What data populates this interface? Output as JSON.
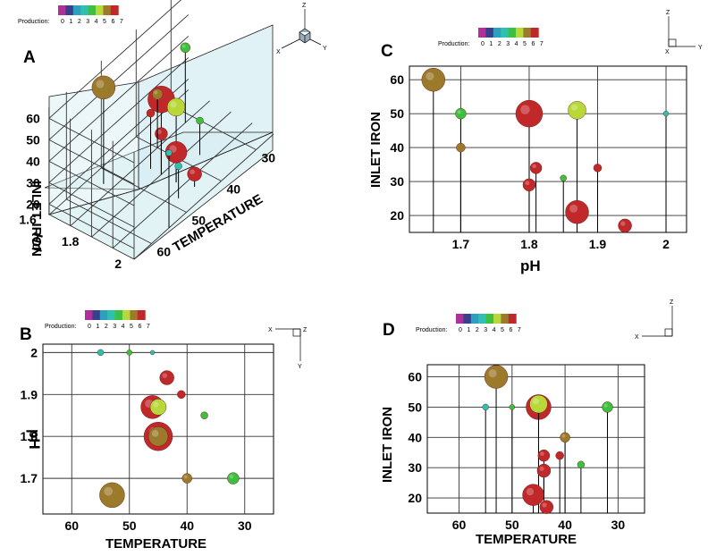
{
  "legend": {
    "title": "Production:",
    "levels": [
      "0",
      "1",
      "2",
      "3",
      "4",
      "5",
      "6",
      "7"
    ],
    "colors": [
      "#b0309a",
      "#3a3f8c",
      "#2f9fbf",
      "#30c0b0",
      "#3fbf3f",
      "#b8d83a",
      "#9b7a2c",
      "#c0282a"
    ]
  },
  "axes_triad": {
    "z": "Z",
    "x": "X",
    "y": "Y"
  },
  "chart_data": [
    {
      "panel": "A",
      "type": "scatter3d",
      "title": "",
      "xlabel": "TEMPERATURE",
      "ylabel": "pH",
      "zlabel": "INLET IRON",
      "xticks": [
        "30",
        "40",
        "50",
        "60"
      ],
      "yticks": [
        "1.6",
        "1.8",
        "2"
      ],
      "zticks": [
        "20",
        "30",
        "40",
        "50",
        "60"
      ],
      "xlim": [
        25,
        65
      ],
      "ylim": [
        1.6,
        2.0
      ],
      "zlim": [
        15,
        65
      ],
      "points": [
        {
          "temperature": 53,
          "ph": 1.66,
          "iron": 60,
          "size": 26,
          "level": 6
        },
        {
          "temperature": 45,
          "ph": 1.8,
          "iron": 50,
          "size": 30,
          "level": 7
        },
        {
          "temperature": 45,
          "ph": 1.87,
          "iron": 50,
          "size": 20,
          "level": 5
        },
        {
          "temperature": 45,
          "ph": 1.8,
          "iron": 34,
          "size": 14,
          "level": 7
        },
        {
          "temperature": 45,
          "ph": 1.87,
          "iron": 29,
          "size": 24,
          "level": 7
        },
        {
          "temperature": 44,
          "ph": 1.94,
          "iron": 21,
          "size": 16,
          "level": 7
        },
        {
          "temperature": 40,
          "ph": 1.7,
          "iron": 40,
          "size": 12,
          "level": 6
        },
        {
          "temperature": 32,
          "ph": 1.7,
          "iron": 50,
          "size": 11,
          "level": 4
        },
        {
          "temperature": 37,
          "ph": 1.85,
          "iron": 31,
          "size": 8,
          "level": 4
        },
        {
          "temperature": 48,
          "ph": 1.93,
          "iron": 30,
          "size": 8,
          "level": 3
        },
        {
          "temperature": 55,
          "ph": 2.0,
          "iron": 50,
          "size": 7,
          "level": 3
        },
        {
          "temperature": 45,
          "ph": 1.75,
          "iron": 41,
          "size": 9,
          "level": 7
        }
      ]
    },
    {
      "panel": "B",
      "type": "scatter",
      "title": "",
      "xlabel": "TEMPERATURE",
      "ylabel": "pH",
      "xticks": [
        60,
        50,
        40,
        30
      ],
      "yticks": [
        1.7,
        1.8,
        1.9,
        2
      ],
      "xlim": [
        65,
        25
      ],
      "ylim": [
        1.615,
        2.02
      ],
      "points": [
        {
          "temperature": 53,
          "ph": 1.66,
          "size": 28,
          "level": 6
        },
        {
          "temperature": 45,
          "ph": 1.8,
          "size": 32,
          "level": 7
        },
        {
          "temperature": 45,
          "ph": 1.8,
          "size": 22,
          "level": 6
        },
        {
          "temperature": 46,
          "ph": 1.87,
          "size": 26,
          "level": 7
        },
        {
          "temperature": 45,
          "ph": 1.87,
          "size": 18,
          "level": 5
        },
        {
          "temperature": 40,
          "ph": 1.7,
          "size": 11,
          "level": 6
        },
        {
          "temperature": 32,
          "ph": 1.7,
          "size": 13,
          "level": 4
        },
        {
          "temperature": 37,
          "ph": 1.85,
          "size": 8,
          "level": 4
        },
        {
          "temperature": 41,
          "ph": 1.9,
          "size": 9,
          "level": 7
        },
        {
          "temperature": 43.5,
          "ph": 1.94,
          "size": 16,
          "level": 7
        },
        {
          "temperature": 55,
          "ph": 2.0,
          "size": 7,
          "level": 3
        },
        {
          "temperature": 50,
          "ph": 2.0,
          "size": 6,
          "level": 4
        },
        {
          "temperature": 46,
          "ph": 2.0,
          "size": 5,
          "level": 3
        }
      ]
    },
    {
      "panel": "C",
      "type": "scatter",
      "title": "",
      "xlabel": "pH",
      "ylabel": "INLET IRON",
      "xticks": [
        1.7,
        1.8,
        1.9,
        2
      ],
      "yticks": [
        20,
        30,
        40,
        50,
        60
      ],
      "xlim": [
        1.625,
        2.03
      ],
      "ylim": [
        15,
        64
      ],
      "points": [
        {
          "ph": 1.66,
          "iron": 60,
          "size": 26,
          "level": 6
        },
        {
          "ph": 1.8,
          "iron": 50,
          "size": 30,
          "level": 7
        },
        {
          "ph": 1.87,
          "iron": 51,
          "size": 20,
          "level": 5
        },
        {
          "ph": 1.7,
          "iron": 50,
          "size": 12,
          "level": 4
        },
        {
          "ph": 2.0,
          "iron": 50,
          "size": 6,
          "level": 3
        },
        {
          "ph": 1.7,
          "iron": 40,
          "size": 10,
          "level": 6
        },
        {
          "ph": 1.81,
          "iron": 34,
          "size": 13,
          "level": 7
        },
        {
          "ph": 1.9,
          "iron": 34,
          "size": 9,
          "level": 7
        },
        {
          "ph": 1.8,
          "iron": 29,
          "size": 14,
          "level": 7
        },
        {
          "ph": 1.85,
          "iron": 31,
          "size": 7,
          "level": 4
        },
        {
          "ph": 1.87,
          "iron": 21,
          "size": 26,
          "level": 7
        },
        {
          "ph": 1.94,
          "iron": 17,
          "size": 15,
          "level": 7
        }
      ]
    },
    {
      "panel": "D",
      "type": "scatter",
      "title": "",
      "xlabel": "TEMPERATURE",
      "ylabel": "INLET IRON",
      "xticks": [
        60,
        50,
        40,
        30
      ],
      "yticks": [
        20,
        30,
        40,
        50,
        60
      ],
      "xlim": [
        66,
        25
      ],
      "ylim": [
        15,
        64
      ],
      "points": [
        {
          "temperature": 53,
          "iron": 60,
          "size": 26,
          "level": 6
        },
        {
          "temperature": 45,
          "iron": 50,
          "size": 28,
          "level": 7
        },
        {
          "temperature": 45,
          "iron": 51,
          "size": 20,
          "level": 5
        },
        {
          "temperature": 55,
          "iron": 50,
          "size": 7,
          "level": 3
        },
        {
          "temperature": 50,
          "iron": 50,
          "size": 6,
          "level": 4
        },
        {
          "temperature": 32,
          "iron": 50,
          "size": 12,
          "level": 4
        },
        {
          "temperature": 40,
          "iron": 40,
          "size": 11,
          "level": 6
        },
        {
          "temperature": 44,
          "iron": 34,
          "size": 13,
          "level": 7
        },
        {
          "temperature": 41,
          "iron": 34,
          "size": 9,
          "level": 7
        },
        {
          "temperature": 44,
          "iron": 29,
          "size": 15,
          "level": 7
        },
        {
          "temperature": 37,
          "iron": 31,
          "size": 8,
          "level": 4
        },
        {
          "temperature": 46,
          "iron": 21,
          "size": 24,
          "level": 7
        },
        {
          "temperature": 43.5,
          "iron": 17,
          "size": 15,
          "level": 7
        }
      ]
    }
  ]
}
